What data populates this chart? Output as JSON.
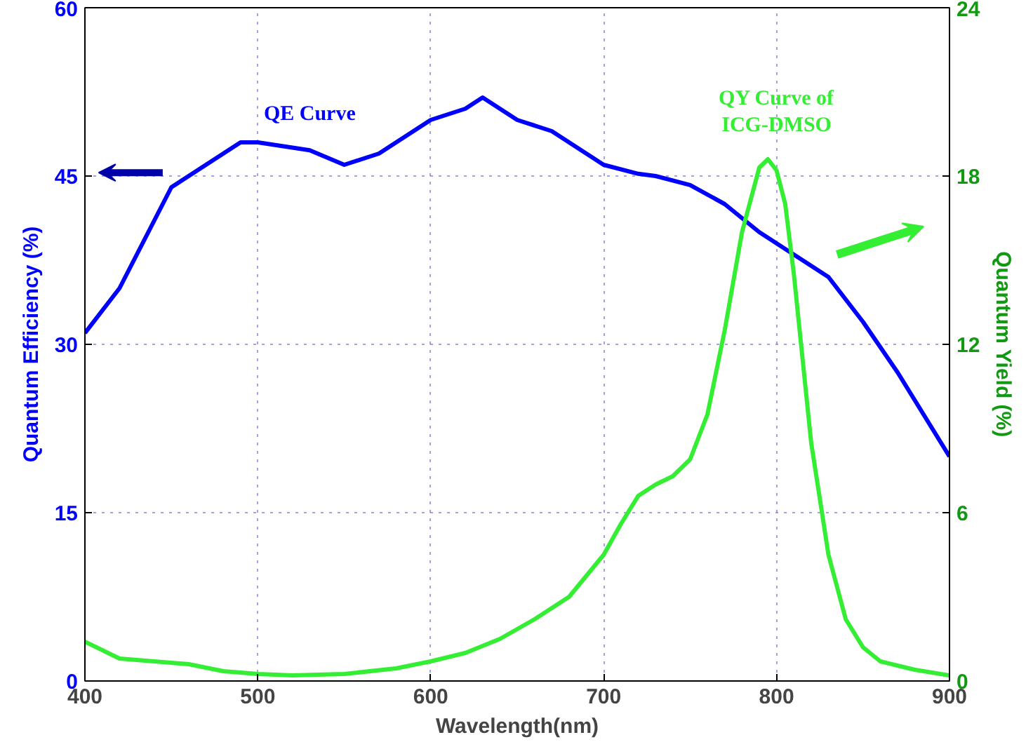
{
  "chart_data": {
    "type": "line",
    "xlabel": "Wavelength(nm)",
    "ylabel": "Quantum Efficiency (%)",
    "y2label": "Quantum Yield (%)",
    "xlim": [
      400,
      900
    ],
    "xticks": [
      400,
      500,
      600,
      700,
      800,
      900
    ],
    "ylim": [
      0,
      60
    ],
    "yticks": [
      0,
      15,
      30,
      45,
      60
    ],
    "y2lim": [
      0,
      24
    ],
    "y2ticks": [
      0,
      6,
      12,
      18,
      24
    ],
    "grid": true,
    "line_style": "solid",
    "annotations": [
      "QE Curve",
      "QY Curve of ICG-DMSO"
    ],
    "series": [
      {
        "color": "#0000ff",
        "x": [
          400,
          420,
          450,
          490,
          500,
          530,
          550,
          570,
          600,
          620,
          630,
          650,
          670,
          700,
          720,
          730,
          750,
          770,
          790,
          810,
          830,
          850,
          870,
          900
        ],
        "values": [
          31,
          35,
          44,
          48,
          48,
          47.3,
          46,
          47,
          50,
          51,
          52,
          50,
          49,
          46,
          45.2,
          45,
          44.2,
          42.5,
          40,
          38,
          36,
          32,
          27.5,
          20
        ]
      },
      {
        "color": "#33ee33",
        "axis": "y2",
        "x": [
          400,
          420,
          440,
          460,
          480,
          500,
          520,
          550,
          580,
          600,
          620,
          640,
          660,
          680,
          700,
          710,
          720,
          730,
          740,
          750,
          760,
          770,
          780,
          790,
          795,
          800,
          805,
          810,
          820,
          830,
          840,
          850,
          860,
          880,
          900
        ],
        "values": [
          1.4,
          0.8,
          0.7,
          0.6,
          0.35,
          0.25,
          0.2,
          0.25,
          0.45,
          0.7,
          1.0,
          1.5,
          2.2,
          3.0,
          4.5,
          5.6,
          6.6,
          7.0,
          7.3,
          7.9,
          9.5,
          12.5,
          16.0,
          18.3,
          18.6,
          18.2,
          17.0,
          14.5,
          8.5,
          4.5,
          2.2,
          1.2,
          0.7,
          0.4,
          0.2
        ]
      }
    ]
  }
}
